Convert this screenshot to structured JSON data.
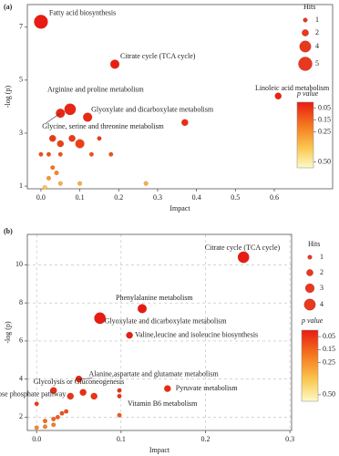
{
  "chart_data": [
    {
      "type": "scatter",
      "panel_label": "(a)",
      "xlabel": "Impact",
      "ylabel": "-log (p)",
      "grid": false,
      "xlim": [
        -0.035,
        0.75
      ],
      "ylim": [
        0.9,
        7.85
      ],
      "xticks": [
        {
          "value": 0,
          "label": "0.0"
        },
        0.1,
        0.2,
        0.3,
        0.4,
        0.5,
        0.6
      ],
      "yticks": [
        1,
        3,
        5,
        7
      ],
      "x": [
        0,
        0.19,
        0.075,
        0.05,
        0.12,
        0.61,
        0.37,
        0.1,
        0.03,
        0.05,
        0.08,
        0.15,
        0.13,
        0.18,
        0,
        0.02,
        0.05,
        0.03,
        0.04,
        0.02,
        0.1,
        0.27,
        0.05,
        0.01
      ],
      "values": [
        7.2,
        5.6,
        3.9,
        3.75,
        3.6,
        4.4,
        3.4,
        2.6,
        2.8,
        2.6,
        2.8,
        2.8,
        2.2,
        2.2,
        2.2,
        2.2,
        2.2,
        1.7,
        1.5,
        1.3,
        1.1,
        1.1,
        1.1,
        0.95
      ],
      "sizes": [
        5,
        3,
        4,
        3,
        3,
        2,
        2,
        3,
        2,
        2,
        2,
        1,
        1,
        1,
        1,
        1,
        1,
        1,
        1,
        1,
        1,
        1,
        1,
        1
      ],
      "labels": [
        "Fatty acid biosynthesis",
        "Citrate cycle (TCA cycle)",
        "Arginine and proline metabolism",
        "Glycine, serine and threonine metabolism",
        "Glyoxylate and dicarboxylate metabolism",
        "Linoleic acid metabolism",
        null,
        null,
        null,
        null,
        null,
        null,
        null,
        null,
        null,
        null,
        null,
        null,
        null,
        null,
        null,
        null,
        null,
        null
      ],
      "size_legend": {
        "title": "Hits",
        "values": [
          1,
          2,
          4,
          5
        ]
      },
      "colorbar": {
        "title": "p value",
        "lim": [
          0,
          0.55
        ],
        "ticks": [
          0.05,
          0.15,
          0.25,
          {
            "value": 0.5,
            "label": "0.50"
          }
        ]
      }
    },
    {
      "type": "scatter",
      "panel_label": "(b)",
      "xlabel": "Impact",
      "ylabel": "-log (p)",
      "grid": true,
      "xlim": [
        -0.011,
        0.302
      ],
      "ylim": [
        1.3,
        11.6
      ],
      "xticks": [
        {
          "value": 0,
          "label": "0.0"
        },
        0.1,
        0.2,
        0.3
      ],
      "yticks": [
        2,
        4,
        6,
        8,
        10
      ],
      "x": [
        0.245,
        0.125,
        0.075,
        0.11,
        0.05,
        0.02,
        0.155,
        0.098,
        0.04,
        0.068,
        0.098,
        0.055,
        0,
        0.098,
        0.03,
        0.025,
        0.02,
        0.01,
        0.01,
        0.02,
        0,
        0.035
      ],
      "values": [
        10.4,
        7.7,
        7.2,
        6.3,
        4.0,
        3.4,
        3.5,
        3.4,
        3.1,
        3.1,
        3.1,
        3.3,
        2.7,
        2.1,
        2.2,
        2.0,
        1.9,
        1.8,
        1.5,
        1.6,
        1.45,
        2.3
      ],
      "sizes": [
        4,
        3,
        4,
        2,
        2,
        2,
        2,
        1,
        2,
        2,
        1,
        2,
        1,
        1,
        1,
        1,
        1,
        1,
        1,
        1,
        1,
        1
      ],
      "labels": [
        "Citrate cycle (TCA cycle)",
        "Phenylalanine metabolism",
        "Glyoxylate and dicarboxylate metabolism",
        "Valine,leucine and isoleucine biosynthesis",
        "Alanine,aspartate and glutamate metabolism",
        "Glycolysis or Gluconeogenesis",
        "Pyruvate metabolism",
        "Vitamin B6 metabolism",
        "Pentose phosphate pathway",
        null,
        null,
        null,
        null,
        null,
        null,
        null,
        null,
        null,
        null,
        null,
        null,
        null
      ],
      "size_legend": {
        "title": "Hits",
        "values": [
          1,
          2,
          3,
          4
        ]
      },
      "colorbar": {
        "title": "p value",
        "lim": [
          0,
          0.55
        ],
        "ticks": [
          0.05,
          0.15,
          0.25,
          {
            "value": 0.5,
            "label": "0.50"
          }
        ]
      }
    }
  ]
}
